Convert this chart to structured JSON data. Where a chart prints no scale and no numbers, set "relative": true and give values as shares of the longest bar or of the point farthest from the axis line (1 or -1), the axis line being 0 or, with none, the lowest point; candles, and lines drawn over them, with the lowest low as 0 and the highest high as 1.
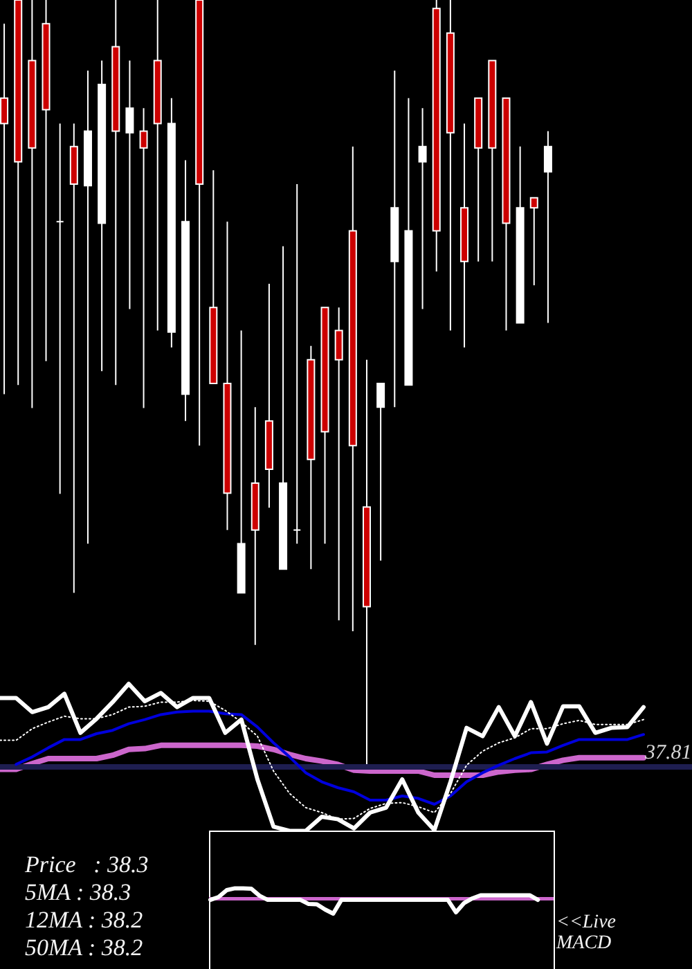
{
  "chart_data": [
    {
      "type": "candlestick",
      "relative": true,
      "categories": [
        null,
        null,
        null,
        null,
        null,
        null,
        null,
        null,
        null,
        null,
        null,
        null,
        null,
        null,
        null,
        null,
        null,
        null,
        null,
        null,
        null,
        null,
        null,
        null,
        null,
        null,
        null,
        null,
        null,
        null,
        null,
        null,
        null,
        null,
        null,
        null,
        null,
        null,
        null,
        null
      ],
      "ohlc": [
        [
          0.872,
          0.969,
          0.486,
          0.839
        ],
        [
          1.0,
          1.0,
          0.498,
          0.789
        ],
        [
          0.921,
          1.0,
          0.468,
          0.807
        ],
        [
          0.969,
          1.0,
          0.529,
          0.857
        ],
        [
          0.711,
          0.839,
          0.356,
          0.711
        ],
        [
          0.809,
          0.839,
          0.227,
          0.76
        ],
        [
          0.758,
          0.908,
          0.291,
          0.829
        ],
        [
          0.709,
          0.921,
          0.516,
          0.89
        ],
        [
          0.939,
          1.0,
          0.498,
          0.829
        ],
        [
          0.827,
          0.921,
          0.597,
          0.859
        ],
        [
          0.829,
          0.859,
          0.468,
          0.807
        ],
        [
          0.921,
          1.0,
          0.569,
          0.839
        ],
        [
          0.567,
          0.872,
          0.547,
          0.839
        ],
        [
          0.486,
          0.791,
          0.451,
          0.711
        ],
        [
          1.0,
          1.0,
          0.419,
          0.76
        ],
        [
          0.599,
          0.778,
          0.5,
          0.5
        ],
        [
          0.5,
          0.711,
          0.309,
          0.357
        ],
        [
          0.227,
          0.569,
          0.227,
          0.291
        ],
        [
          0.37,
          0.469,
          0.159,
          0.309
        ],
        [
          0.451,
          0.63,
          0.338,
          0.388
        ],
        [
          0.258,
          0.679,
          0.258,
          0.37
        ],
        [
          0.309,
          0.76,
          0.291,
          0.309
        ],
        [
          0.531,
          0.549,
          0.258,
          0.401
        ],
        [
          0.599,
          0.599,
          0.291,
          0.437
        ],
        [
          0.569,
          0.599,
          0.191,
          0.531
        ],
        [
          0.699,
          0.809,
          0.177,
          0.419
        ],
        [
          0.339,
          0.531,
          0.0,
          0.209
        ],
        [
          0.469,
          0.5,
          0.269,
          0.5
        ],
        [
          0.659,
          0.908,
          0.469,
          0.729
        ],
        [
          0.498,
          0.872,
          0.498,
          0.699
        ],
        [
          0.789,
          0.859,
          0.597,
          0.809
        ],
        [
          0.989,
          1.0,
          0.646,
          0.699
        ],
        [
          0.957,
          1.0,
          0.569,
          0.827
        ],
        [
          0.729,
          0.839,
          0.547,
          0.659
        ],
        [
          0.872,
          0.872,
          0.659,
          0.807
        ],
        [
          0.921,
          0.921,
          0.659,
          0.807
        ],
        [
          0.872,
          0.872,
          0.569,
          0.709
        ],
        [
          0.579,
          0.809,
          0.579,
          0.729
        ],
        [
          0.742,
          0.742,
          0.628,
          0.729
        ],
        [
          0.776,
          0.829,
          0.579,
          0.809
        ]
      ],
      "colors": [
        "#cc0000",
        "#cc0000",
        "#cc0000",
        "#cc0000",
        "#ffffff",
        "#cc0000",
        "#ffffff",
        "#ffffff",
        "#cc0000",
        "#ffffff",
        "#cc0000",
        "#cc0000",
        "#ffffff",
        "#ffffff",
        "#cc0000",
        "#cc0000",
        "#cc0000",
        "#ffffff",
        "#cc0000",
        "#cc0000",
        "#ffffff",
        "#ffffff",
        "#cc0000",
        "#cc0000",
        "#cc0000",
        "#cc0000",
        "#cc0000",
        "#ffffff",
        "#ffffff",
        "#ffffff",
        "#ffffff",
        "#cc0000",
        "#cc0000",
        "#cc0000",
        "#cc0000",
        "#cc0000",
        "#cc0000",
        "#ffffff",
        "#cc0000",
        "#ffffff"
      ]
    },
    {
      "type": "line",
      "relative": true,
      "categories": [
        null,
        null,
        null,
        null,
        null,
        null,
        null,
        null,
        null,
        null,
        null,
        null,
        null,
        null,
        null,
        null,
        null,
        null,
        null,
        null,
        null,
        null,
        null,
        null,
        null,
        null,
        null,
        null,
        null,
        null,
        null,
        null,
        null,
        null,
        null,
        null,
        null,
        null,
        null,
        null,
        null
      ],
      "series": [
        {
          "color": "#cc66cc",
          "values": [
            -0.03,
            -0.03,
            0.04,
            0.1,
            0.1,
            0.1,
            0.1,
            0.14,
            0.21,
            0.22,
            0.26,
            0.26,
            0.26,
            0.26,
            0.26,
            0.26,
            0.25,
            0.21,
            0.15,
            0.1,
            0.07,
            0.03,
            -0.04,
            -0.05,
            -0.05,
            -0.05,
            -0.05,
            -0.1,
            -0.1,
            -0.1,
            -0.1,
            -0.06,
            -0.04,
            -0.03,
            0.03,
            0.08,
            0.11,
            0.11,
            0.11,
            0.11,
            0.11
          ]
        },
        {
          "color": "#0000dd",
          "values": [
            null,
            0.03,
            0.12,
            0.23,
            0.33,
            0.33,
            0.4,
            0.44,
            0.52,
            0.57,
            0.63,
            0.66,
            0.67,
            0.67,
            0.64,
            0.63,
            0.48,
            0.29,
            0.12,
            -0.07,
            -0.18,
            -0.25,
            -0.3,
            -0.4,
            -0.4,
            -0.35,
            -0.38,
            -0.45,
            -0.35,
            -0.18,
            -0.07,
            0.02,
            0.1,
            0.17,
            0.18,
            0.26,
            0.33,
            0.33,
            0.33,
            0.33,
            0.39
          ]
        },
        {
          "color": "#ffffff",
          "line_style": "dotted",
          "values": [
            0.32,
            0.32,
            0.46,
            0.54,
            0.61,
            0.58,
            0.58,
            0.63,
            0.72,
            0.73,
            0.78,
            0.78,
            0.8,
            0.79,
            0.68,
            0.54,
            0.37,
            -0.05,
            -0.32,
            -0.49,
            -0.55,
            -0.63,
            -0.62,
            -0.5,
            -0.44,
            -0.43,
            -0.48,
            -0.55,
            -0.32,
            0.02,
            0.19,
            0.29,
            0.35,
            0.46,
            0.46,
            0.52,
            0.56,
            0.51,
            0.51,
            0.51,
            0.57
          ]
        },
        {
          "color": "#ffffff",
          "values": [
            0.83,
            0.83,
            0.66,
            0.72,
            0.88,
            0.41,
            0.58,
            0.78,
            1.0,
            0.79,
            0.89,
            0.72,
            0.83,
            0.83,
            0.41,
            0.57,
            -0.15,
            -0.72,
            -0.77,
            -0.77,
            -0.6,
            -0.63,
            -0.74,
            -0.55,
            -0.49,
            -0.15,
            -0.55,
            -0.76,
            -0.18,
            0.47,
            0.37,
            0.72,
            0.37,
            0.78,
            0.28,
            0.73,
            0.73,
            0.41,
            0.47,
            0.48,
            0.72
          ]
        }
      ],
      "ref_lines": [
        {
          "axis": "y",
          "value": 0,
          "color": "#1e1e50"
        }
      ],
      "annotations": [
        "37.81"
      ]
    },
    {
      "type": "line",
      "relative": true,
      "categories": [
        null,
        null,
        null,
        null,
        null,
        null,
        null,
        null,
        null,
        null,
        null,
        null,
        null,
        null,
        null,
        null,
        null,
        null,
        null,
        null,
        null,
        null,
        null,
        null,
        null,
        null,
        null,
        null,
        null,
        null,
        null,
        null,
        null,
        null,
        null,
        null,
        null,
        null,
        null,
        null,
        null
      ],
      "series": [
        {
          "color": "#ffffff",
          "values": [
            -0.07,
            0.12,
            0.59,
            0.71,
            0.71,
            0.68,
            0.21,
            -0.07,
            -0.07,
            -0.07,
            -0.07,
            -0.07,
            -0.35,
            -0.37,
            -0.72,
            -1.0,
            -0.07,
            -0.07,
            -0.07,
            -0.07,
            -0.07,
            -0.07,
            -0.07,
            -0.07,
            -0.07,
            -0.07,
            -0.07,
            -0.07,
            -0.07,
            -0.07,
            -0.91,
            -0.28,
            0.03,
            0.24,
            0.24,
            0.24,
            0.24,
            0.24,
            0.24,
            0.24,
            -0.07
          ]
        }
      ],
      "ref_lines": [
        {
          "axis": "y",
          "value": 0,
          "color": "#cc66cc"
        }
      ],
      "annotations": [
        "<<Live",
        "MACD"
      ]
    },
    {
      "type": "other",
      "annotations": [
        "Price   : 38.3",
        "5MA : 38.3",
        "12MA : 38.2",
        "50MA : 38.2"
      ]
    }
  ]
}
